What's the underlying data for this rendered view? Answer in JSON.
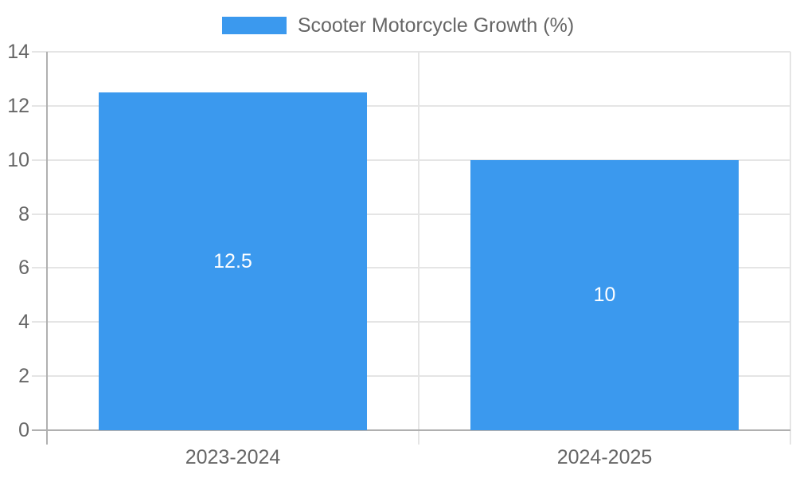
{
  "chart_data": {
    "type": "bar",
    "title": "",
    "categories": [
      "2023-2024",
      "2024-2025"
    ],
    "series": [
      {
        "name": "Scooter Motorcycle Growth (%)",
        "values": [
          12.5,
          10
        ]
      }
    ],
    "data_labels": [
      "12.5",
      "10"
    ],
    "ylim": [
      0,
      14
    ],
    "ytick_step": 2,
    "ytick_labels": [
      "0",
      "2",
      "4",
      "6",
      "8",
      "10",
      "12",
      "14"
    ],
    "legend_position": "top",
    "grid": true,
    "colors": {
      "bar": "#3B99EE",
      "data_label_text": "#FFFFFF",
      "tick_text": "#666666",
      "grid_line": "#E5E5E5",
      "axis_line": "#B0B0B0",
      "background": "#FFFFFF"
    }
  }
}
